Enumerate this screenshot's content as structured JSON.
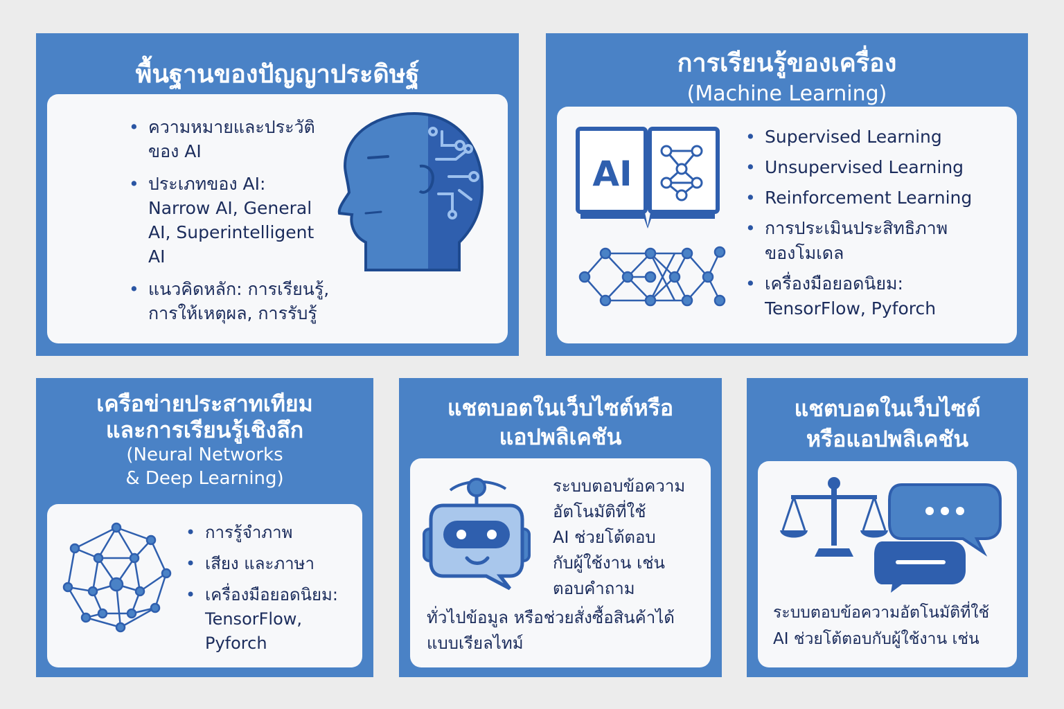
{
  "colors": {
    "card_blue": "#4a82c6",
    "panel_white": "#f7f8fa",
    "icon_blue": "#2f5fae",
    "icon_light": "#7fa9de",
    "text_navy": "#1b2c5c",
    "background": "#ececec"
  },
  "cards": [
    {
      "title_lines": [
        "พื้นฐานของปัญญาประดิษฐ์"
      ],
      "icon": "ai-head-circuit-icon",
      "bullets": [
        {
          "lines": [
            "ความหมายและประวัติ",
            "ของ AI"
          ]
        },
        {
          "lines": [
            "ประเภทของ AI:",
            "Narrow AI, General",
            "AI, Superintelligent",
            "AI"
          ]
        },
        {
          "lines": [
            "แนวคิดหลัก: การเรียนรู้,",
            "การให้เหตุผล, การรับรู้"
          ]
        }
      ]
    },
    {
      "title_lines": [
        "การเรียนรู้ของเครื่อง",
        "(Machine Learning)"
      ],
      "icons": [
        "ai-book-icon",
        "neural-network-icon"
      ],
      "book_label": "AI",
      "bullets": [
        {
          "lines": [
            "Supervised Learning"
          ]
        },
        {
          "lines": [
            "Unsupervised Learning"
          ]
        },
        {
          "lines": [
            "Reinforcement Learning"
          ]
        },
        {
          "lines": [
            "การประเมินประสิทธิภาพ",
            "ของโมเดล"
          ]
        },
        {
          "lines": [
            "เครื่องมือยอดนิยม:",
            "TensorFlow, Pyforch"
          ]
        }
      ]
    },
    {
      "title_lines": [
        "เครือข่ายประสาทเทียม",
        "และการเรียนรู้เชิงลึก",
        "(Neural Networks",
        "& Deep Learning)"
      ],
      "icon": "neural-sphere-icon",
      "bullets": [
        {
          "lines": [
            "การรู้จำภาพ"
          ]
        },
        {
          "lines": [
            "เสียง และภาษา"
          ]
        },
        {
          "lines": [
            "เครื่องมือยอดนิยม:",
            "TensorFlow,",
            "Pyforch"
          ]
        }
      ]
    },
    {
      "title_lines": [
        "แชตบอตในเว็บไซต์หรือ",
        "แอปพลิเคชัน"
      ],
      "icon": "chatbot-icon",
      "text_lines": [
        "ระบบตอบข้อความ",
        "อัตโนมัติที่ใช้",
        "AI ช่วยโต้ตอบ",
        "กับผู้ใช้งาน เช่น",
        "ตอบคำถาม"
      ],
      "text_lines_wide": [
        "ทั่วไปข้อมูล หรือช่วยสั่งซื้อสินค้าได้",
        "แบบเรียลไทม์"
      ]
    },
    {
      "title_lines": [
        "แชตบอตในเว็บไซต์",
        "หรือแอปพลิเคชัน"
      ],
      "icons": [
        "scales-icon",
        "chat-bubbles-icon"
      ],
      "text_lines": [
        "ระบบตอบข้อความอัตโนมัติที่ใช้",
        "AI ช่วยโต้ตอบกับผู้ใช้งาน เช่น"
      ]
    }
  ]
}
